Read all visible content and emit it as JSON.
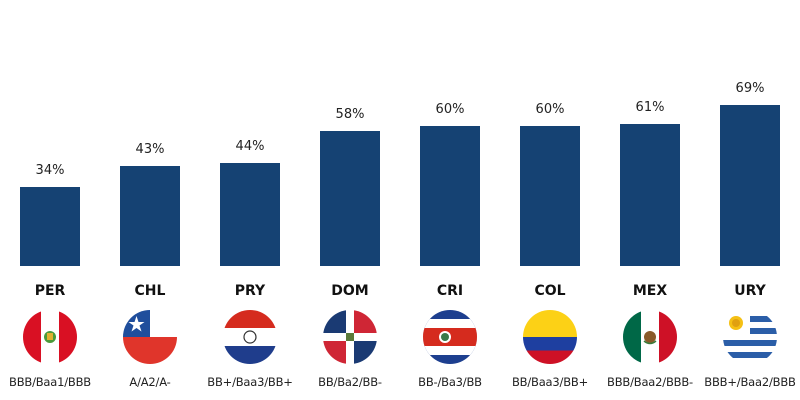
{
  "chart_data": {
    "type": "bar",
    "title": "",
    "xlabel": "",
    "ylabel": "",
    "ylim": [
      0,
      75
    ],
    "grid": false,
    "bar_color": "#154273",
    "categories": [
      "PER",
      "CHL",
      "PRY",
      "DOM",
      "CRI",
      "COL",
      "MEX",
      "URY"
    ],
    "values": [
      34,
      43,
      44,
      58,
      60,
      60,
      61,
      69
    ],
    "value_labels": [
      "34%",
      "43%",
      "44%",
      "58%",
      "60%",
      "60%",
      "61%",
      "69%"
    ],
    "ratings": [
      "BBB/Baa1/BBB",
      "A/A2/A-",
      "BB+/Baa3/BB+",
      "BB/Ba2/BB-",
      "BB-/Ba3/BB",
      "BB/Baa3/BB+",
      "BBB/Baa2/BBB-",
      "BBB+/Baa2/BBB"
    ],
    "flag_icons": [
      "peru-flag-icon",
      "chile-flag-icon",
      "paraguay-flag-icon",
      "dominican-republic-flag-icon",
      "costa-rica-flag-icon",
      "colombia-flag-icon",
      "mexico-flag-icon",
      "uruguay-flag-icon"
    ]
  }
}
